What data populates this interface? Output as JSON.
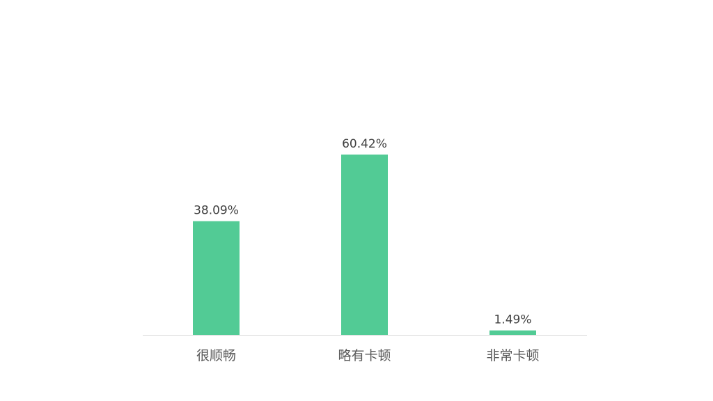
{
  "chart_data": {
    "type": "bar",
    "categories": [
      "很顺畅",
      "略有卡顿",
      "非常卡顿"
    ],
    "values": [
      38.09,
      60.42,
      1.49
    ],
    "data_labels": [
      "38.09%",
      "60.42%",
      "1.49%"
    ],
    "ylim": [
      0,
      100
    ],
    "grid": false,
    "legend": "none",
    "colors": {
      "bar": "#52cb95",
      "axis": "#d9d9d9"
    }
  }
}
